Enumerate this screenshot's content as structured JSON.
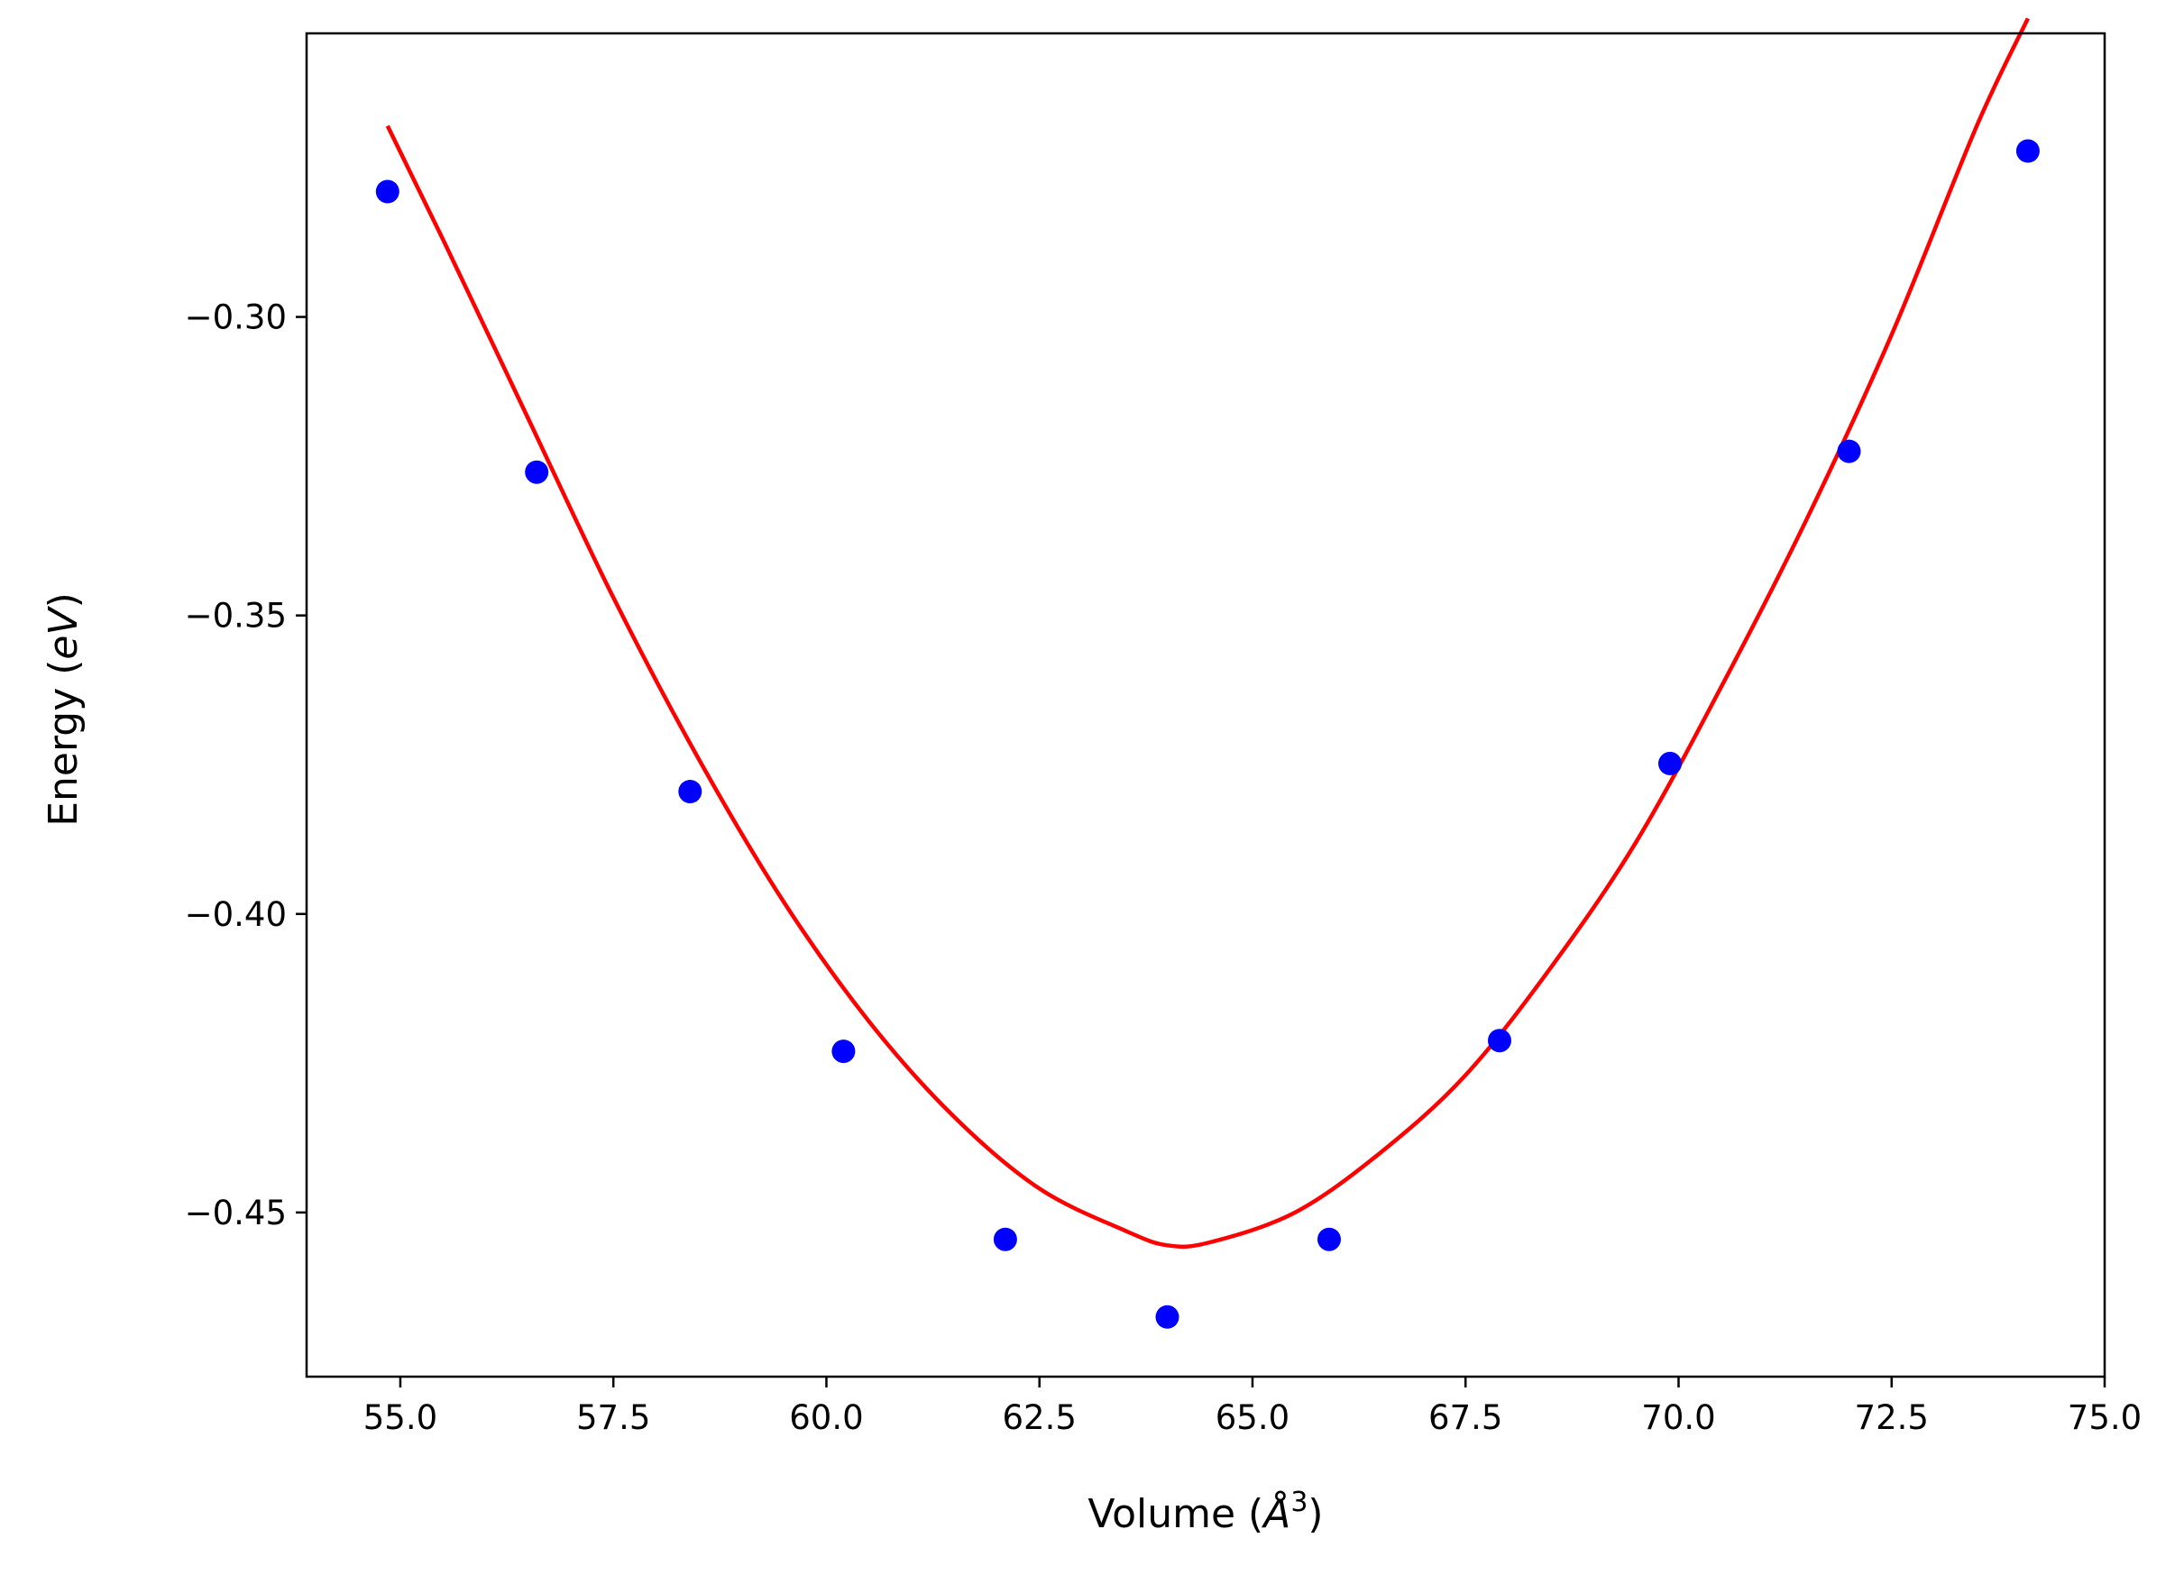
{
  "chart_data": {
    "type": "scatter",
    "title": "",
    "xlabel": {
      "prefix": "Volume (",
      "symbol": "Å",
      "superscript": "3",
      "suffix": ")"
    },
    "ylabel": {
      "prefix": "Energy (",
      "unit": "eV",
      "suffix": ")"
    },
    "xlim": [
      53.9,
      75.0
    ],
    "ylim": [
      -0.4775,
      -0.2525
    ],
    "x_ticks": [
      55.0,
      57.5,
      60.0,
      62.5,
      65.0,
      67.5,
      70.0,
      72.5,
      75.0
    ],
    "x_tick_labels": [
      "55.0",
      "57.5",
      "60.0",
      "62.5",
      "65.0",
      "67.5",
      "70.0",
      "72.5",
      "75.0"
    ],
    "y_ticks": [
      -0.3,
      -0.35,
      -0.4,
      -0.45
    ],
    "y_tick_labels": [
      "−0.30",
      "−0.35",
      "−0.40",
      "−0.45"
    ],
    "grid": false,
    "series": [
      {
        "type": "scatter",
        "color": "#0000ff",
        "points": [
          {
            "x": 54.85,
            "y": -0.279
          },
          {
            "x": 56.6,
            "y": -0.326
          },
          {
            "x": 58.4,
            "y": -0.3795
          },
          {
            "x": 60.2,
            "y": -0.423
          },
          {
            "x": 62.1,
            "y": -0.4545
          },
          {
            "x": 64.0,
            "y": -0.4675
          },
          {
            "x": 65.9,
            "y": -0.4545
          },
          {
            "x": 67.9,
            "y": -0.4212
          },
          {
            "x": 69.9,
            "y": -0.3748
          },
          {
            "x": 72.0,
            "y": -0.3225
          },
          {
            "x": 74.1,
            "y": -0.2722
          }
        ]
      },
      {
        "type": "line",
        "color": "#ff0000",
        "points": [
          {
            "x": 54.85,
            "y": -0.268
          },
          {
            "x": 55.5,
            "y": -0.287
          },
          {
            "x": 56.5,
            "y": -0.317
          },
          {
            "x": 57.5,
            "y": -0.347
          },
          {
            "x": 58.5,
            "y": -0.374
          },
          {
            "x": 59.5,
            "y": -0.398
          },
          {
            "x": 60.5,
            "y": -0.418
          },
          {
            "x": 61.5,
            "y": -0.434
          },
          {
            "x": 62.5,
            "y": -0.446
          },
          {
            "x": 63.5,
            "y": -0.453
          },
          {
            "x": 64.0,
            "y": -0.4555
          },
          {
            "x": 64.5,
            "y": -0.455
          },
          {
            "x": 65.5,
            "y": -0.45
          },
          {
            "x": 66.5,
            "y": -0.44
          },
          {
            "x": 67.5,
            "y": -0.427
          },
          {
            "x": 68.5,
            "y": -0.409
          },
          {
            "x": 69.5,
            "y": -0.388
          },
          {
            "x": 70.5,
            "y": -0.362
          },
          {
            "x": 71.5,
            "y": -0.334
          },
          {
            "x": 72.5,
            "y": -0.303
          },
          {
            "x": 73.5,
            "y": -0.268
          },
          {
            "x": 74.1,
            "y": -0.25
          }
        ]
      }
    ]
  }
}
